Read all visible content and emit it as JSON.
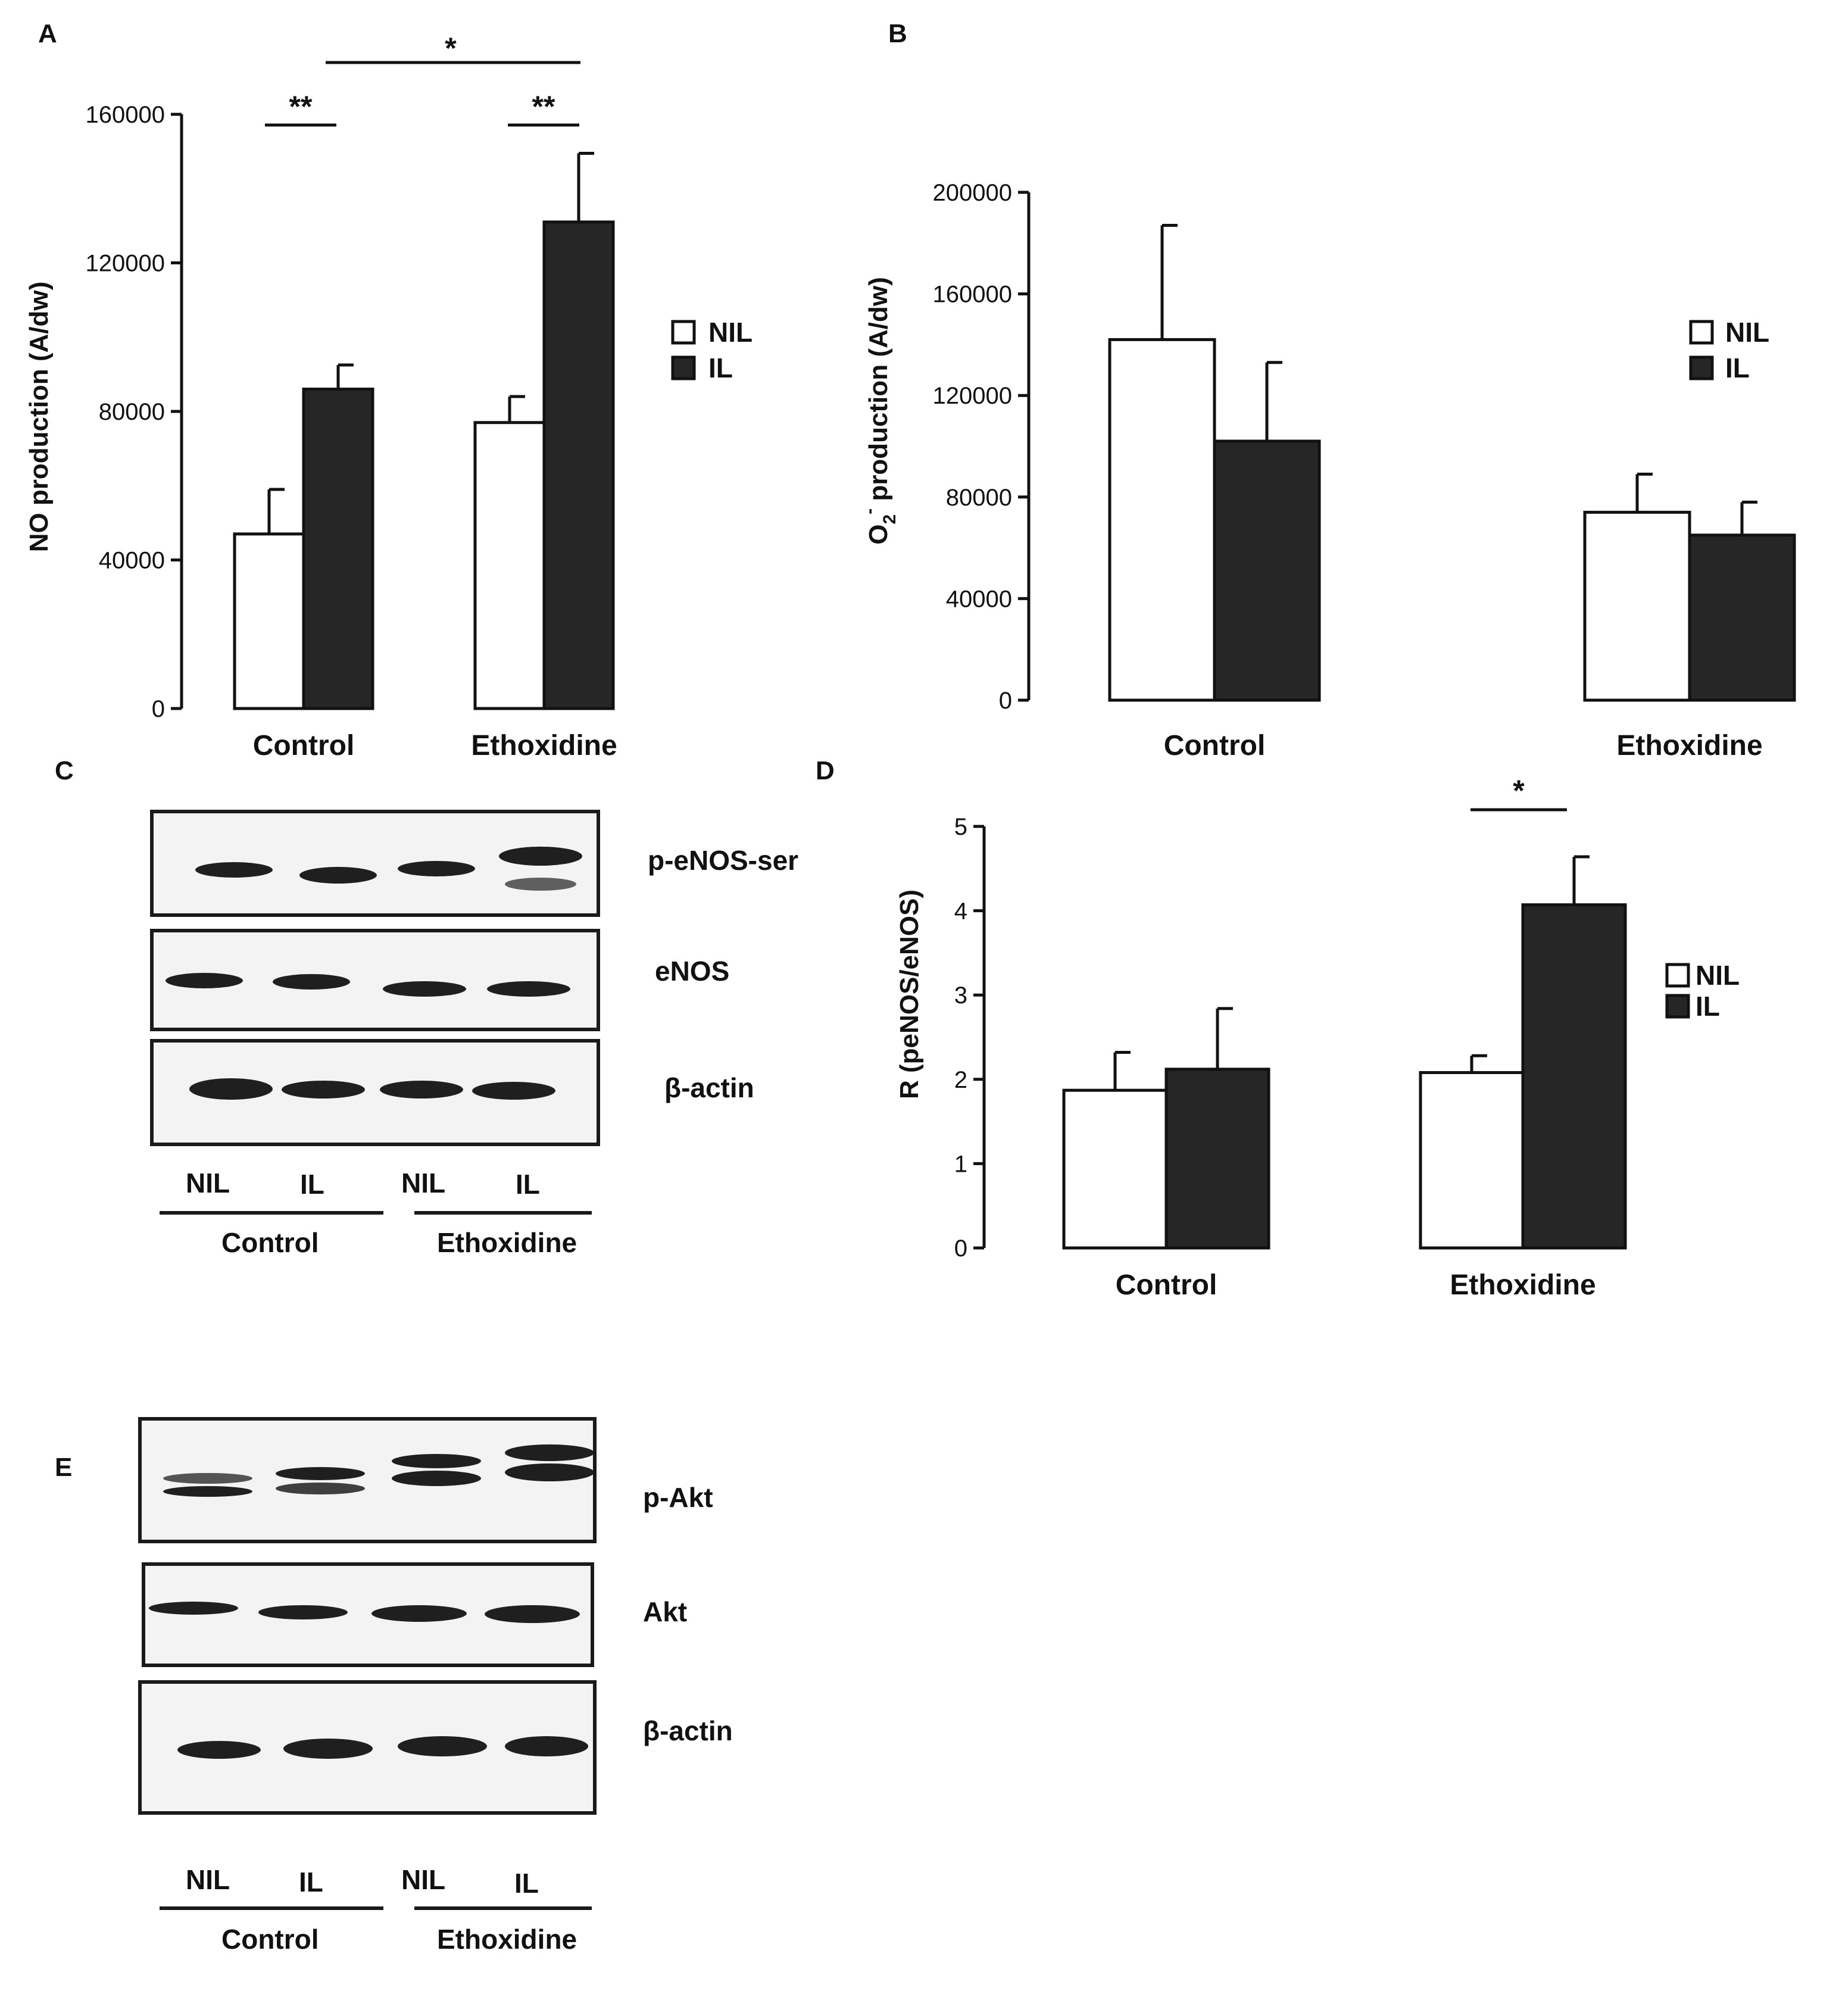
{
  "panels": {
    "a": {
      "letter": "A"
    },
    "b": {
      "letter": "B"
    },
    "c": {
      "letter": "C"
    },
    "d": {
      "letter": "D"
    },
    "e": {
      "letter": "E"
    }
  },
  "legend": {
    "nil": "NIL",
    "il": "IL"
  },
  "colors": {
    "nil_fill": "#ffffff",
    "il_fill": "#262626",
    "stroke": "#111111"
  },
  "chart_data": [
    {
      "id": "A",
      "type": "bar",
      "categories": [
        "Control",
        "Ethoxidine"
      ],
      "series": [
        {
          "name": "NIL",
          "values": [
            47000,
            77000
          ],
          "errors": [
            12000,
            7000
          ]
        },
        {
          "name": "IL",
          "values": [
            86000,
            131000
          ],
          "errors": [
            6500,
            18500
          ]
        }
      ],
      "ylabel": "NO production (A/dw)",
      "ylim": [
        0,
        160000
      ],
      "yticks": [
        "0",
        "40000",
        "80000",
        "120000",
        "160000"
      ],
      "legend_position": "right",
      "significance": [
        "**",
        "**",
        "*"
      ]
    },
    {
      "id": "B",
      "type": "bar",
      "categories": [
        "Control",
        "Ethoxidine"
      ],
      "series": [
        {
          "name": "NIL",
          "values": [
            142000,
            74000
          ],
          "errors": [
            45000,
            15000
          ]
        },
        {
          "name": "IL",
          "values": [
            102000,
            65000
          ],
          "errors": [
            31000,
            13000
          ]
        }
      ],
      "ylabel_main": "O",
      "ylabel_sub": "2",
      "ylabel_sup": "-",
      "ylabel_rest": " production (A/dw)",
      "ylim": [
        0,
        200000
      ],
      "yticks": [
        "0",
        "40000",
        "80000",
        "120000",
        "160000",
        "200000"
      ],
      "legend_position": "right"
    },
    {
      "id": "D",
      "type": "bar",
      "categories": [
        "Control",
        "Ethoxidine"
      ],
      "series": [
        {
          "name": "NIL",
          "values": [
            1.87,
            2.08
          ],
          "errors": [
            0.45,
            0.2
          ]
        },
        {
          "name": "IL",
          "values": [
            2.12,
            4.07
          ],
          "errors": [
            0.72,
            0.57
          ]
        }
      ],
      "ylabel": "R (peNOS/eNOS)",
      "ylim": [
        0,
        5
      ],
      "yticks": [
        "0",
        "1",
        "2",
        "3",
        "4",
        "5"
      ],
      "legend_position": "right",
      "significance": [
        "*"
      ]
    }
  ],
  "blots_c": {
    "rows": [
      "p-eNOS-ser",
      "eNOS",
      "β-actin"
    ],
    "lanes": [
      "NIL",
      "IL",
      "NIL",
      "IL"
    ],
    "groups": [
      "Control",
      "Ethoxidine"
    ]
  },
  "blots_e": {
    "rows": [
      "p-Akt",
      "Akt",
      "β-actin"
    ],
    "lanes": [
      "NIL",
      "IL",
      "NIL",
      "IL"
    ],
    "groups": [
      "Control",
      "Ethoxidine"
    ]
  }
}
